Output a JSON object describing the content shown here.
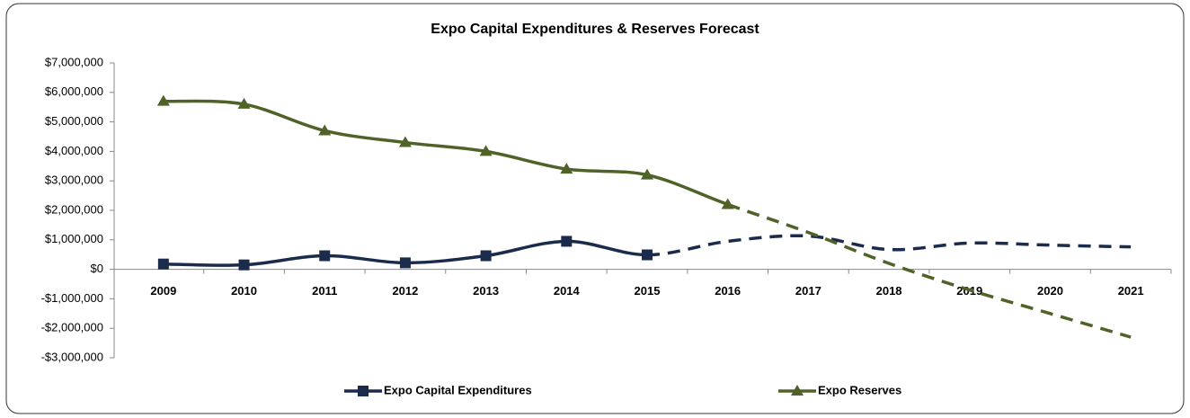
{
  "chart_data": {
    "type": "line",
    "title": "Expo Capital Expenditures & Reserves Forecast",
    "categories": [
      "2009",
      "2010",
      "2011",
      "2012",
      "2013",
      "2014",
      "2015",
      "2016",
      "2017",
      "2018",
      "2019",
      "2020",
      "2021"
    ],
    "series": [
      {
        "name": "Expo Capital Expenditures",
        "color": "#1b2b4b",
        "marker": "square",
        "dash_start": "2015",
        "values": [
          180000,
          150000,
          460000,
          220000,
          460000,
          950000,
          490000,
          950000,
          1130000,
          670000,
          890000,
          820000,
          760000
        ]
      },
      {
        "name": "Expo Reserves",
        "color": "#4f6228",
        "marker": "triangle",
        "dash_start": "2016",
        "values": [
          5700000,
          5600000,
          4700000,
          4300000,
          4000000,
          3400000,
          3200000,
          2200000,
          1250000,
          200000,
          -700000,
          -1500000,
          -2300000
        ]
      }
    ],
    "ylim": [
      -3000000,
      7000000
    ],
    "yticks": [
      {
        "value": -3000000,
        "label": "-$3,000,000"
      },
      {
        "value": -2000000,
        "label": "-$2,000,000"
      },
      {
        "value": -1000000,
        "label": "-$1,000,000"
      },
      {
        "value": 0,
        "label": "$0"
      },
      {
        "value": 1000000,
        "label": "$1,000,000"
      },
      {
        "value": 2000000,
        "label": "$2,000,000"
      },
      {
        "value": 3000000,
        "label": "$3,000,000"
      },
      {
        "value": 4000000,
        "label": "$4,000,000"
      },
      {
        "value": 5000000,
        "label": "$5,000,000"
      },
      {
        "value": 6000000,
        "label": "$6,000,000"
      },
      {
        "value": 7000000,
        "label": "$7,000,000"
      }
    ],
    "grid": false,
    "legend": "bottom"
  }
}
